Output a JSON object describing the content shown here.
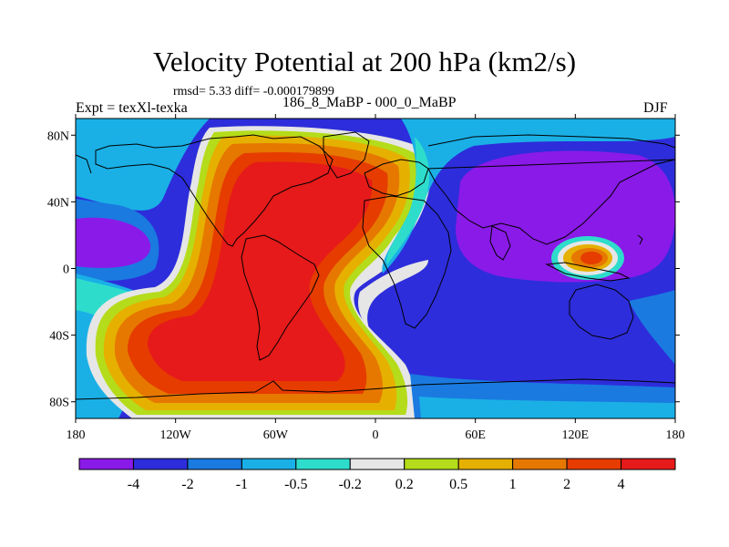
{
  "title": "Velocity Potential at 200 hPa (km2/s)",
  "subtitle": "rmsd= 5.33 diff= -0.000179899",
  "left_label": "Expt = texXl-texka",
  "center_label": "186_8_MaBP - 000_0_MaBP",
  "right_label": "DJF",
  "axes": {
    "y_ticks": [
      {
        "label": "80N",
        "value": 80
      },
      {
        "label": "40N",
        "value": 40
      },
      {
        "label": "0",
        "value": 0
      },
      {
        "label": "40S",
        "value": -40
      },
      {
        "label": "80S",
        "value": -80
      }
    ],
    "x_ticks": [
      {
        "label": "180",
        "value": -180
      },
      {
        "label": "120W",
        "value": -120
      },
      {
        "label": "60W",
        "value": -60
      },
      {
        "label": "0",
        "value": 0
      },
      {
        "label": "60E",
        "value": 60
      },
      {
        "label": "120E",
        "value": 120
      },
      {
        "label": "180",
        "value": 180
      }
    ],
    "lon_range": [
      -180,
      180
    ],
    "lat_range": [
      -90,
      90
    ]
  },
  "colorbar": {
    "labels": [
      "-4",
      "-2",
      "-1",
      "-0.5",
      "-0.2",
      "0.2",
      "0.5",
      "1",
      "2",
      "4"
    ],
    "colors": [
      "#8a1ae8",
      "#2d2ddb",
      "#1a7ae0",
      "#1ab0e6",
      "#2edccc",
      "#e6e6e6",
      "#b4dc1a",
      "#e6b000",
      "#e67800",
      "#e63c00",
      "#e61a1a"
    ]
  },
  "map_fields": {
    "background_color": "#2d2ddb",
    "positive_anomaly": "Western Hemisphere / Atlantic: values > 4 (red) centered near 40W, 20N",
    "negative_anomaly": "Eastern Hemisphere / Pacific: values < -4 (purple) centered near 100E, 20N",
    "local_maximum": "Positive bullseye near 125E, 0 (values 2 to 4)",
    "western_minimum": "Purple patch near 170W, 5N"
  }
}
